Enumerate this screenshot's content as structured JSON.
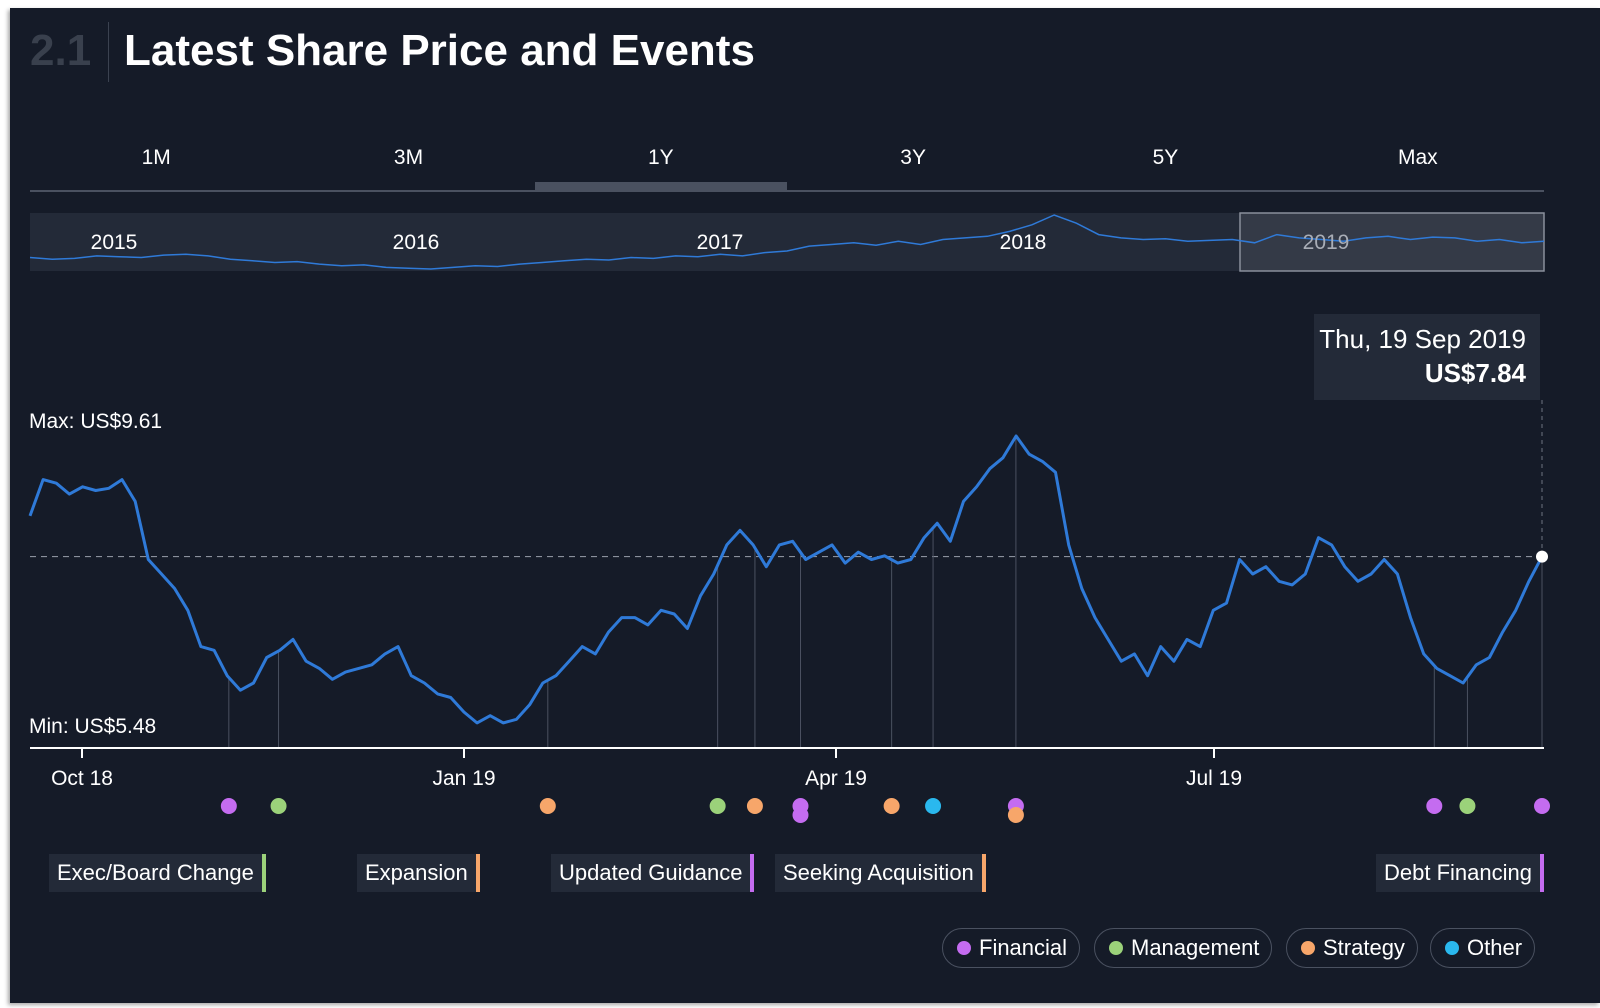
{
  "header": {
    "section_number": "2.1",
    "title": "Latest Share Price and Events"
  },
  "tabs": [
    {
      "label": "1M",
      "active": false
    },
    {
      "label": "3M",
      "active": false
    },
    {
      "label": "1Y",
      "active": true
    },
    {
      "label": "3Y",
      "active": false
    },
    {
      "label": "5Y",
      "active": false
    },
    {
      "label": "Max",
      "active": false
    }
  ],
  "colors": {
    "line": "#2f7ad8",
    "financial": "#c46cf0",
    "management": "#9bd27a",
    "strategy": "#f7a66a",
    "other": "#2ab8ee"
  },
  "navigator": {
    "year_labels": [
      "2015",
      "2016",
      "2017",
      "2018",
      "2019"
    ],
    "selected_range": "1Y",
    "series": [
      6.2,
      6.1,
      6.15,
      6.3,
      6.25,
      6.2,
      6.35,
      6.4,
      6.3,
      6.1,
      6.0,
      5.9,
      5.95,
      5.8,
      5.7,
      5.75,
      5.6,
      5.55,
      5.5,
      5.6,
      5.7,
      5.65,
      5.8,
      5.9,
      6.0,
      6.1,
      6.05,
      6.2,
      6.15,
      6.3,
      6.25,
      6.4,
      6.3,
      6.5,
      6.6,
      6.9,
      7.0,
      7.1,
      6.95,
      7.2,
      7.0,
      7.3,
      7.4,
      7.5,
      7.8,
      8.2,
      8.8,
      8.3,
      7.6,
      7.4,
      7.3,
      7.35,
      7.2,
      7.25,
      7.3,
      7.1,
      7.6,
      7.4,
      7.3,
      7.2,
      7.4,
      7.5,
      7.3,
      7.45,
      7.4,
      7.2,
      7.3,
      7.1,
      7.2
    ]
  },
  "chart_data": {
    "type": "line",
    "title": "Latest Share Price and Events",
    "x_ticks": [
      "Oct 18",
      "Jan 19",
      "Apr 19",
      "Jul 19"
    ],
    "x_range": [
      "2018-09-19",
      "2019-09-19"
    ],
    "y_range": [
      5.48,
      9.61
    ],
    "max_label": "Max: US$9.61",
    "min_label": "Min: US$5.48",
    "reference_value": 7.84,
    "legend_position": "bottom-right",
    "series": [
      {
        "values": [
          8.4,
          8.9,
          8.85,
          8.7,
          8.8,
          8.75,
          8.78,
          8.9,
          8.6,
          7.8,
          7.6,
          7.4,
          7.1,
          6.6,
          6.55,
          6.2,
          6.0,
          6.1,
          6.45,
          6.55,
          6.7,
          6.4,
          6.3,
          6.15,
          6.25,
          6.3,
          6.35,
          6.5,
          6.6,
          6.2,
          6.1,
          5.95,
          5.9,
          5.7,
          5.55,
          5.65,
          5.55,
          5.6,
          5.8,
          6.1,
          6.2,
          6.4,
          6.6,
          6.5,
          6.8,
          7.0,
          7.0,
          6.9,
          7.1,
          7.05,
          6.85,
          7.3,
          7.6,
          8.0,
          8.2,
          8.0,
          7.7,
          8.0,
          8.05,
          7.8,
          7.9,
          8.0,
          7.75,
          7.9,
          7.8,
          7.85,
          7.75,
          7.8,
          8.1,
          8.3,
          8.05,
          8.6,
          8.8,
          9.05,
          9.2,
          9.5,
          9.25,
          9.15,
          9.0,
          8.0,
          7.4,
          7.0,
          6.7,
          6.4,
          6.5,
          6.2,
          6.6,
          6.4,
          6.7,
          6.6,
          7.1,
          7.2,
          7.8,
          7.6,
          7.7,
          7.5,
          7.45,
          7.6,
          8.1,
          8.0,
          7.7,
          7.5,
          7.6,
          7.8,
          7.6,
          7.0,
          6.5,
          6.3,
          6.2,
          6.1,
          6.35,
          6.45,
          6.8,
          7.1,
          7.5,
          7.84
        ]
      }
    ],
    "events": [
      {
        "date": "2018-11-06",
        "category": "Financial"
      },
      {
        "date": "2018-11-18",
        "category": "Management",
        "label": "Exec/Board Change"
      },
      {
        "date": "2019-01-22",
        "category": "Strategy",
        "label": "Expansion"
      },
      {
        "date": "2019-03-04",
        "category": "Management"
      },
      {
        "date": "2019-03-13",
        "category": "Strategy"
      },
      {
        "date": "2019-03-24",
        "category": "Financial"
      },
      {
        "date": "2019-03-24",
        "category": "Financial",
        "label": "Updated Guidance"
      },
      {
        "date": "2019-04-15",
        "category": "Strategy"
      },
      {
        "date": "2019-04-25",
        "category": "Other"
      },
      {
        "date": "2019-05-15",
        "category": "Financial"
      },
      {
        "date": "2019-05-15",
        "category": "Strategy",
        "label": "Seeking Acquisition"
      },
      {
        "date": "2019-08-24",
        "category": "Financial"
      },
      {
        "date": "2019-09-01",
        "category": "Management"
      },
      {
        "date": "2019-09-19",
        "category": "Financial",
        "label": "Debt Financing"
      }
    ]
  },
  "tooltip": {
    "date": "Thu, 19 Sep 2019",
    "price": "US$7.84"
  },
  "legend": [
    {
      "label": "Financial",
      "color_key": "financial"
    },
    {
      "label": "Management",
      "color_key": "management"
    },
    {
      "label": "Strategy",
      "color_key": "strategy"
    },
    {
      "label": "Other",
      "color_key": "other"
    }
  ]
}
